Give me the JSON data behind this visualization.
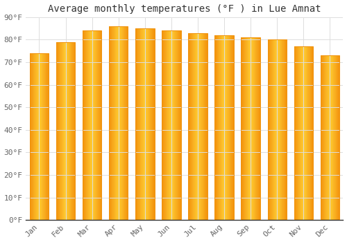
{
  "title": "Average monthly temperatures (°F ) in Lue Amnat",
  "months": [
    "Jan",
    "Feb",
    "Mar",
    "Apr",
    "May",
    "Jun",
    "Jul",
    "Aug",
    "Sep",
    "Oct",
    "Nov",
    "Dec"
  ],
  "values": [
    74,
    79,
    84,
    86,
    85,
    84,
    83,
    82,
    81,
    80,
    77,
    73
  ],
  "bar_color_center": "#FFCC44",
  "bar_color_edge": "#F0920A",
  "background_color": "#FFFFFF",
  "grid_color": "#DDDDDD",
  "ylim": [
    0,
    90
  ],
  "yticks": [
    0,
    10,
    20,
    30,
    40,
    50,
    60,
    70,
    80,
    90
  ],
  "ytick_labels": [
    "0°F",
    "10°F",
    "20°F",
    "30°F",
    "40°F",
    "50°F",
    "60°F",
    "70°F",
    "80°F",
    "90°F"
  ],
  "title_fontsize": 10,
  "tick_fontsize": 8,
  "font_family": "monospace",
  "bar_width": 0.72
}
